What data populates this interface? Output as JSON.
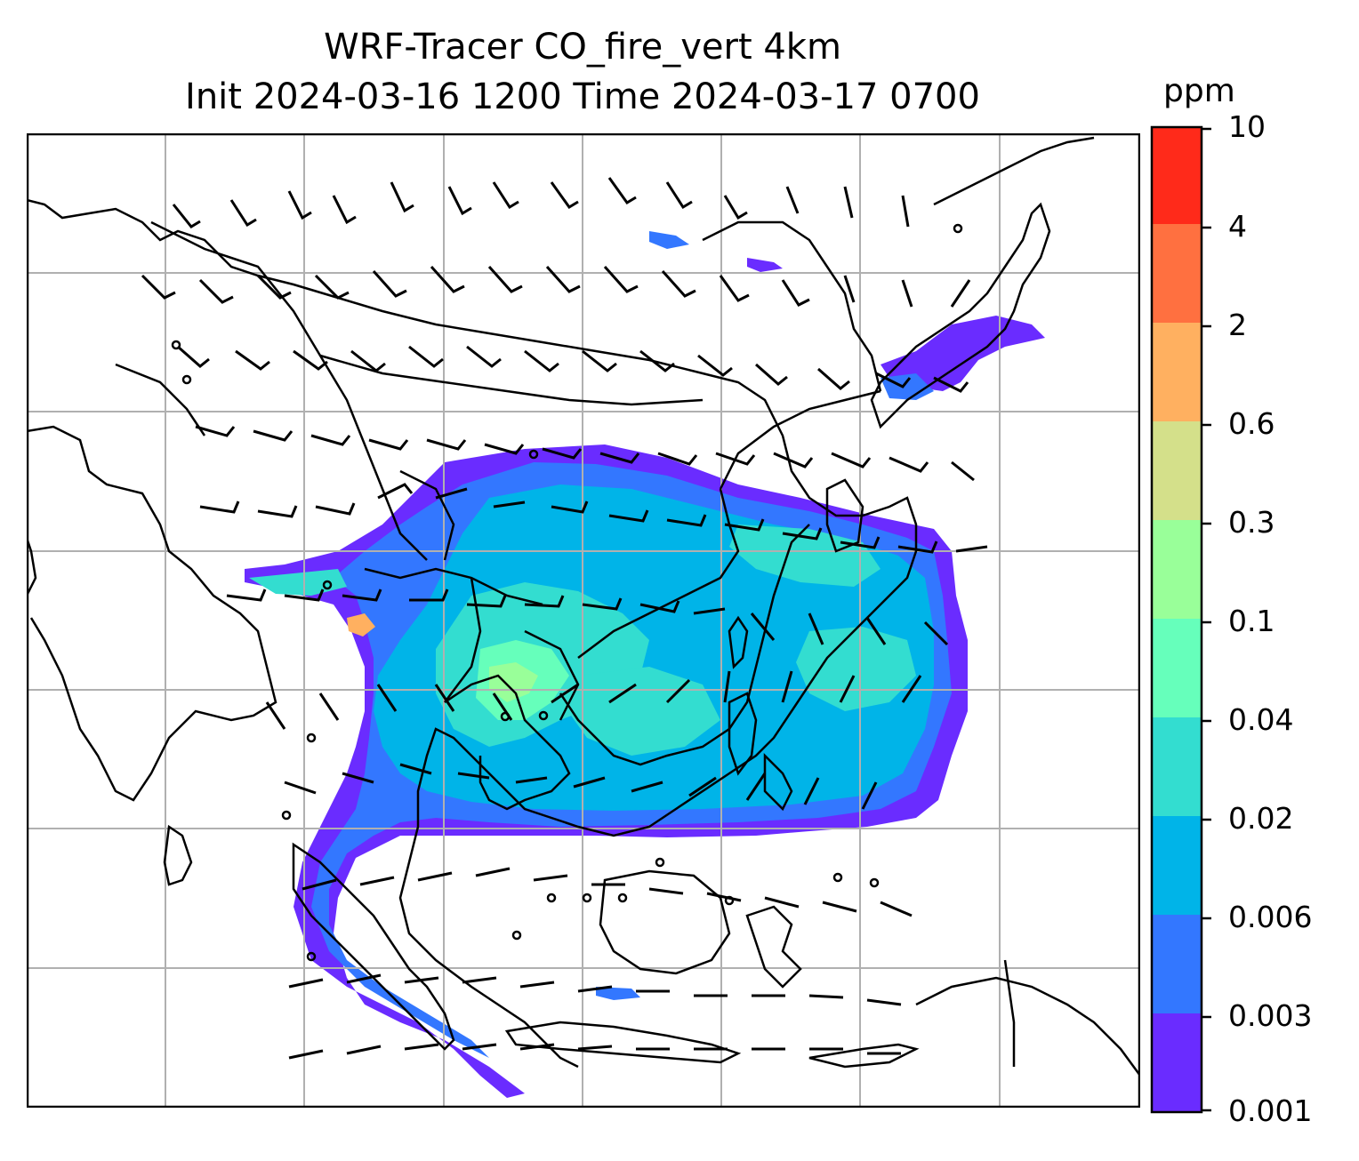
{
  "title_line1": "WRF-Tracer CO_fire_vert 4km",
  "title_line2": "Init 2024-03-16 1200 Time 2024-03-17 0700",
  "colorbar": {
    "unit": "ppm",
    "levels": [
      "0.001",
      "0.003",
      "0.006",
      "0.02",
      "0.04",
      "0.1",
      "0.3",
      "0.6",
      "2",
      "4",
      "10"
    ],
    "colors": [
      "#6a2cff",
      "#3377ff",
      "#00b4e8",
      "#33ddd0",
      "#66ffbb",
      "#99ff99",
      "#d4e08a",
      "#ffb060",
      "#ff7040",
      "#ff2a1a"
    ]
  },
  "map": {
    "gridlines": true,
    "features": [
      "coastlines",
      "country-borders",
      "wind-barbs",
      "co-fire-tracer-contours"
    ],
    "colors": {
      "grid": "#b0b0b0",
      "coast": "#000000",
      "frame": "#000000"
    }
  }
}
